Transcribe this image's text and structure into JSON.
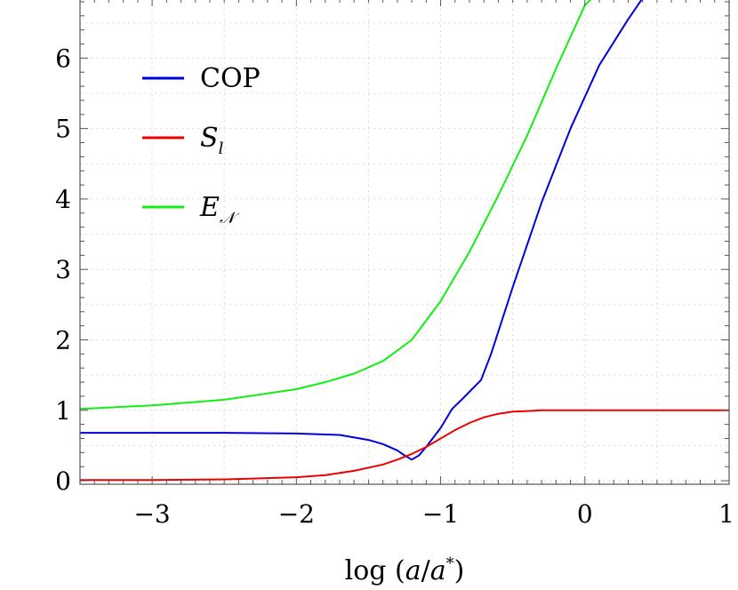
{
  "chart_data": {
    "type": "line",
    "title": "",
    "xlabel": "log (a/a*)",
    "ylabel": "",
    "xlim": [
      -3.5,
      1.0
    ],
    "ylim": [
      -0.05,
      6.85
    ],
    "grid": true,
    "legend_placement": "top-left",
    "x_ticks": [
      {
        "value": -3,
        "label": "−3"
      },
      {
        "value": -2,
        "label": "−2"
      },
      {
        "value": -1,
        "label": "−1"
      },
      {
        "value": 0,
        "label": "0"
      },
      {
        "value": 1,
        "label": "1"
      }
    ],
    "y_ticks": [
      {
        "value": 0,
        "label": "0"
      },
      {
        "value": 1,
        "label": "1"
      },
      {
        "value": 2,
        "label": "2"
      },
      {
        "value": 3,
        "label": "3"
      },
      {
        "value": 4,
        "label": "4"
      },
      {
        "value": 5,
        "label": "5"
      },
      {
        "value": 6,
        "label": "6"
      }
    ],
    "series": [
      {
        "name": "COP",
        "color": "#0000dd",
        "x": [
          -3.5,
          -3.0,
          -2.5,
          -2.0,
          -1.7,
          -1.5,
          -1.4,
          -1.3,
          -1.25,
          -1.2,
          -1.15,
          -1.1,
          -1.0,
          -0.92,
          -0.85,
          -0.72,
          -0.65,
          -0.5,
          -0.3,
          -0.1,
          0.1,
          0.3,
          0.4
        ],
        "y": [
          0.68,
          0.68,
          0.68,
          0.67,
          0.65,
          0.58,
          0.52,
          0.43,
          0.36,
          0.3,
          0.36,
          0.48,
          0.75,
          1.02,
          1.16,
          1.43,
          1.8,
          2.75,
          3.95,
          5.0,
          5.9,
          6.55,
          6.85
        ]
      },
      {
        "name": "S_l",
        "color": "#ee0000",
        "x": [
          -3.5,
          -3.0,
          -2.5,
          -2.0,
          -1.8,
          -1.6,
          -1.4,
          -1.3,
          -1.2,
          -1.1,
          -1.0,
          -0.9,
          -0.8,
          -0.7,
          -0.6,
          -0.5,
          -0.4,
          -0.3,
          -0.2,
          0.0,
          0.5,
          1.0
        ],
        "y": [
          0.01,
          0.01,
          0.02,
          0.05,
          0.08,
          0.14,
          0.23,
          0.3,
          0.38,
          0.48,
          0.6,
          0.72,
          0.82,
          0.9,
          0.95,
          0.98,
          0.99,
          1.0,
          1.0,
          1.0,
          1.0,
          1.0
        ]
      },
      {
        "name": "E_N",
        "color": "#11ee11",
        "x": [
          -3.5,
          -3.0,
          -2.5,
          -2.0,
          -1.8,
          -1.6,
          -1.4,
          -1.2,
          -1.0,
          -0.8,
          -0.6,
          -0.4,
          -0.2,
          0.0,
          0.05
        ],
        "y": [
          1.02,
          1.07,
          1.15,
          1.3,
          1.4,
          1.52,
          1.7,
          2.0,
          2.55,
          3.25,
          4.05,
          4.9,
          5.85,
          6.75,
          6.85
        ]
      }
    ],
    "legend": [
      {
        "series": "COP",
        "label_main": "COP",
        "label_sub": ""
      },
      {
        "series": "S_l",
        "label_main": "S",
        "label_sub": "l"
      },
      {
        "series": "E_N",
        "label_main": "E",
        "label_sub": "𝒩"
      }
    ]
  }
}
